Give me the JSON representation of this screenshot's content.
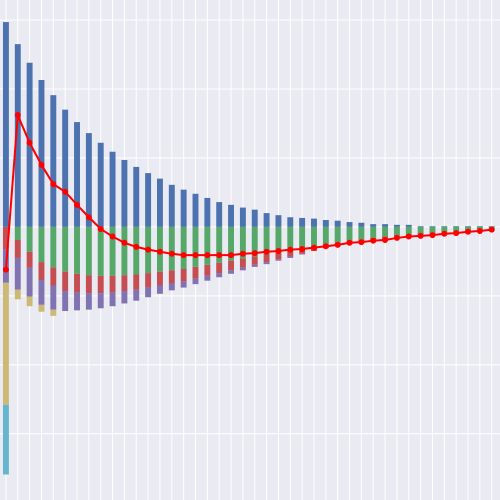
{
  "chart_data": {
    "type": "bar",
    "x": [
      0,
      1,
      2,
      3,
      4,
      5,
      6,
      7,
      8,
      9,
      10,
      11,
      12,
      13,
      14,
      15,
      16,
      17,
      18,
      19,
      20,
      21,
      22,
      23,
      24,
      25,
      26,
      27,
      28,
      29,
      30,
      31,
      32,
      33,
      34,
      35,
      36,
      37,
      38,
      39,
      40,
      41
    ],
    "xlim": [
      -0.5,
      41.7
    ],
    "xticks": [
      0,
      1,
      2,
      3,
      4,
      5,
      6,
      7,
      8,
      9,
      10,
      11,
      12,
      13,
      14,
      15,
      16,
      17,
      18,
      19,
      20,
      21,
      22,
      23,
      24,
      25,
      26,
      27,
      28,
      29,
      30,
      31,
      32,
      33,
      34,
      35,
      36,
      37,
      38,
      39,
      40,
      41
    ],
    "ylim": [
      -3.96,
      3.29
    ],
    "yticks": [
      -3,
      -2,
      -1,
      0,
      1,
      2,
      3
    ],
    "grid": true,
    "series": [
      {
        "color": "#4c72b0",
        "values": [
          2.97,
          2.65,
          2.38,
          2.13,
          1.91,
          1.7,
          1.52,
          1.36,
          1.22,
          1.09,
          0.97,
          0.87,
          0.78,
          0.7,
          0.61,
          0.54,
          0.48,
          0.42,
          0.36,
          0.32,
          0.28,
          0.25,
          0.2,
          0.17,
          0.14,
          0.13,
          0.12,
          0.1,
          0.09,
          0.07,
          0.06,
          0.04,
          0.04,
          0.03,
          0.03,
          0.01,
          0.01,
          0.01,
          0.01,
          0.01,
          0.01,
          0.01
        ]
      },
      {
        "color": "#55a868",
        "values": [
          0,
          -0.19,
          -0.36,
          -0.51,
          -0.59,
          -0.65,
          -0.68,
          -0.7,
          -0.71,
          -0.71,
          -0.7,
          -0.69,
          -0.67,
          -0.65,
          -0.63,
          -0.61,
          -0.58,
          -0.55,
          -0.52,
          -0.49,
          -0.46,
          -0.43,
          -0.4,
          -0.37,
          -0.34,
          -0.31,
          -0.28,
          -0.25,
          -0.23,
          -0.2,
          -0.18,
          -0.16,
          -0.14,
          -0.12,
          -0.11,
          -0.09,
          -0.08,
          -0.07,
          -0.06,
          -0.05,
          -0.04,
          -0.03
        ]
      },
      {
        "color": "#c44e52",
        "values": [
          -0.33,
          -0.26,
          -0.23,
          -0.26,
          -0.26,
          -0.28,
          -0.27,
          -0.26,
          -0.25,
          -0.24,
          -0.23,
          -0.22,
          -0.21,
          -0.2,
          -0.19,
          -0.18,
          -0.17,
          -0.16,
          -0.15,
          -0.14,
          -0.13,
          -0.12,
          -0.11,
          -0.1,
          -0.09,
          -0.08,
          -0.07,
          -0.06,
          -0.05,
          -0.05,
          -0.04,
          -0.04,
          -0.03,
          -0.03,
          -0.02,
          -0.02,
          -0.02,
          -0.01,
          -0.01,
          -0.01,
          -0.01,
          -0.01
        ]
      },
      {
        "color": "#8172b2",
        "values": [
          -0.48,
          -0.46,
          -0.42,
          -0.36,
          -0.35,
          -0.29,
          -0.26,
          -0.24,
          -0.22,
          -0.2,
          -0.18,
          -0.16,
          -0.14,
          -0.12,
          -0.1,
          -0.09,
          -0.08,
          -0.07,
          -0.06,
          -0.05,
          -0.04,
          -0.03,
          -0.03,
          -0.02,
          -0.02,
          -0.01,
          0,
          0,
          0,
          0,
          0,
          0,
          0,
          0,
          0,
          0,
          0,
          0,
          0,
          0,
          0,
          0
        ]
      },
      {
        "color": "#ccb974",
        "values": [
          -1.77,
          -0.14,
          -0.14,
          -0.1,
          -0.09,
          0,
          0,
          0,
          0,
          0,
          0,
          0,
          0,
          0,
          0,
          0,
          0,
          0,
          0,
          0,
          0,
          0,
          0,
          0,
          0,
          0,
          0,
          0,
          0,
          0,
          0,
          0,
          0,
          0,
          0,
          0,
          0,
          0,
          0,
          0,
          0,
          0
        ]
      },
      {
        "color": "#64b5cd",
        "values": [
          -1.01,
          0,
          0,
          0,
          0,
          0,
          0,
          0,
          0,
          0,
          0,
          0,
          0,
          0,
          0,
          0,
          0,
          0,
          0,
          0,
          0,
          0,
          0,
          0,
          0,
          0,
          0,
          0,
          0,
          0,
          0,
          0,
          0,
          0,
          0,
          0,
          0,
          0,
          0,
          0,
          0,
          0
        ]
      },
      {
        "kind": "line",
        "color": "#ff0000",
        "values": [
          -0.62,
          1.62,
          1.22,
          0.9,
          0.62,
          0.51,
          0.32,
          0.14,
          -0.03,
          -0.14,
          -0.23,
          -0.29,
          -0.33,
          -0.36,
          -0.39,
          -0.41,
          -0.41,
          -0.41,
          -0.41,
          -0.41,
          -0.39,
          -0.38,
          -0.36,
          -0.35,
          -0.33,
          -0.32,
          -0.3,
          -0.28,
          -0.26,
          -0.23,
          -0.22,
          -0.2,
          -0.19,
          -0.16,
          -0.14,
          -0.13,
          -0.12,
          -0.1,
          -0.09,
          -0.07,
          -0.06,
          -0.04
        ]
      }
    ]
  }
}
